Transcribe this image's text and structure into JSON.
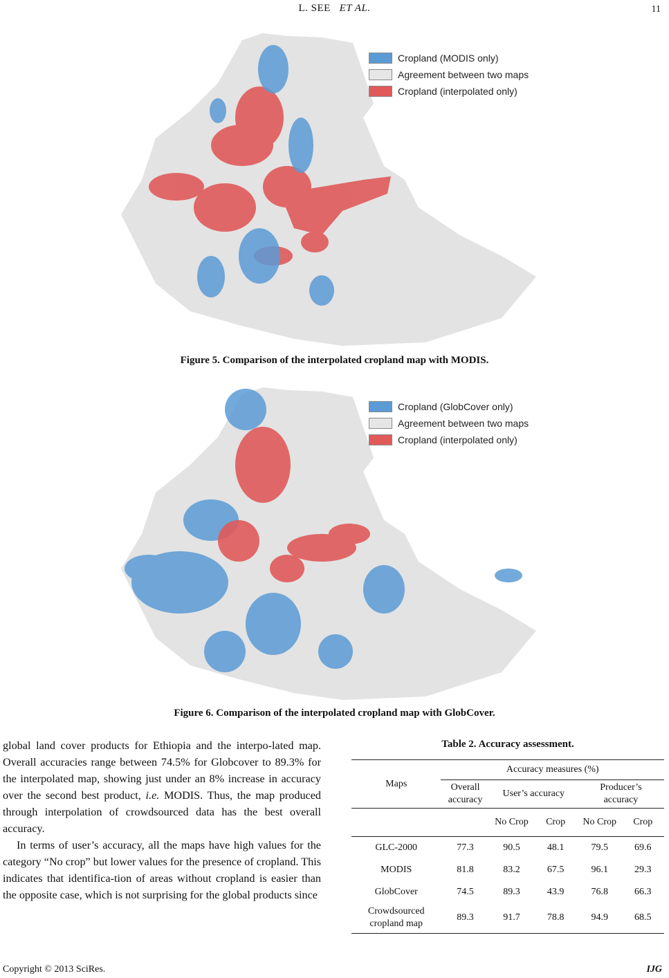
{
  "header": {
    "author": "L. SEE",
    "et_al": "ET AL.",
    "page_number": "11"
  },
  "figure5": {
    "legend": [
      {
        "label": "Cropland (MODIS only)",
        "color": "#5b9bd5"
      },
      {
        "label": "Agreement between two maps",
        "color": "#e6e6e6"
      },
      {
        "label": "Cropland (interpolated only)",
        "color": "#e05a5a"
      }
    ],
    "caption": "Figure 5. Comparison of the interpolated cropland map with MODIS."
  },
  "figure6": {
    "legend": [
      {
        "label": "Cropland (GlobCover only)",
        "color": "#5b9bd5"
      },
      {
        "label": "Agreement between two maps",
        "color": "#e6e6e6"
      },
      {
        "label": "Cropland (interpolated only)",
        "color": "#e05a5a"
      }
    ],
    "caption": "Figure 6. Comparison of the interpolated cropland map with GlobCover."
  },
  "body": {
    "p1_a": "global land cover products for Ethiopia and the interpo-lated map. Overall accuracies range between 74.5% for Globcover to 89.3% for the interpolated map, showing just under an 8% increase in accuracy over the second best product, ",
    "p1_ie": "i.e.",
    "p1_b": " MODIS. Thus, the map produced through interpolation of crowdsourced data has the best overall accuracy.",
    "p2": "In terms of user’s accuracy, all the maps have high values for the category “No crop” but lower values for the presence of cropland. This indicates that identifica-tion of areas without cropland is easier than the opposite case, which is not surprising for the global products since"
  },
  "table": {
    "title": "Table 2. Accuracy assessment.",
    "col_maps": "Maps",
    "col_group": "Accuracy measures (%)",
    "col_overall": "Overall accuracy",
    "col_user": "User’s accuracy",
    "col_producer": "Producer’s accuracy",
    "sub_nocrop": "No Crop",
    "sub_crop": "Crop",
    "rows": [
      {
        "map": "GLC-2000",
        "overall": "77.3",
        "user_nocrop": "90.5",
        "user_crop": "48.1",
        "prod_nocrop": "79.5",
        "prod_crop": "69.6"
      },
      {
        "map": "MODIS",
        "overall": "81.8",
        "user_nocrop": "83.2",
        "user_crop": "67.5",
        "prod_nocrop": "96.1",
        "prod_crop": "29.3"
      },
      {
        "map": "GlobCover",
        "overall": "74.5",
        "user_nocrop": "89.3",
        "user_crop": "43.9",
        "prod_nocrop": "76.8",
        "prod_crop": "66.3"
      },
      {
        "map": "Crowdsourced cropland map",
        "overall": "89.3",
        "user_nocrop": "91.7",
        "user_crop": "78.8",
        "prod_nocrop": "94.9",
        "prod_crop": "68.5"
      }
    ]
  },
  "footer": {
    "copyright": "Copyright © 2013 SciRes.",
    "journal": "IJG"
  }
}
